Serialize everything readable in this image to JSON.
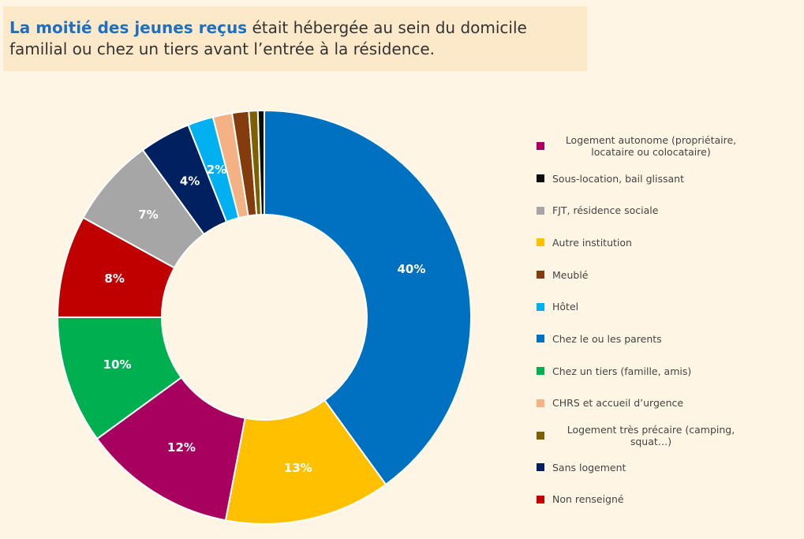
{
  "chart_data": {
    "type": "pie",
    "title": {
      "highlight": "La moitié des jeunes reçus",
      "lines": [
        "était hébergée au sein du domicile",
        "familial ou chez un tiers avant l’entrée à la résidence."
      ]
    },
    "categories": [
      "Chez le ou les parents",
      "Autre institution",
      "Logement autonome (propriétaire, locataire ou colocataire)",
      "Chez un tiers (famille, amis)",
      "Non renseigné",
      "FJT, résidence sociale",
      "Sans logement",
      "Hôtel",
      "CHRS et accueil d’urgence",
      "Meublé",
      "Logement très précaire (camping, squat…)",
      "Sous-location, bail glissant"
    ],
    "values": [
      40,
      13,
      12,
      10,
      8,
      7,
      4,
      2,
      1.5,
      1.3,
      0.7,
      0.5
    ],
    "value_labels": [
      "40%",
      "13%",
      "12%",
      "10%",
      "8%",
      "7%",
      "4%",
      "2%",
      null,
      null,
      null,
      null
    ],
    "colors": [
      "#0070c0",
      "#ffc000",
      "#a8005e",
      "#00b050",
      "#c00000",
      "#a6a6a6",
      "#002060",
      "#00b0f0",
      "#f4b183",
      "#843c0c",
      "#7f6000",
      "#0d0d0d"
    ],
    "legend": [
      "Logement autonome (propriétaire, locataire ou colocataire)",
      "Sous-location, bail glissant",
      "FJT, résidence sociale",
      "Autre institution",
      "Meublé",
      "Hôtel",
      "Chez le ou les parents",
      "Chez un tiers (famille, amis)",
      "CHRS et accueil d’urgence",
      "Logement très précaire (camping, squat…)",
      "Sans logement",
      "Non renseigné"
    ]
  }
}
